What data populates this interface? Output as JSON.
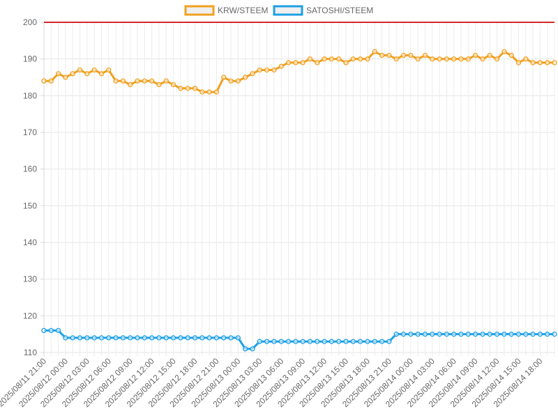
{
  "chart_data": {
    "type": "line",
    "title": "",
    "xlabel": "",
    "ylabel": "",
    "ylim": [
      110,
      200
    ],
    "y_ticks": [
      110,
      120,
      130,
      140,
      150,
      160,
      170,
      180,
      190,
      200
    ],
    "grid": true,
    "legend_position": "top",
    "reference_line": {
      "value": 200,
      "color": "#d62728"
    },
    "x_tick_labels": [
      "2025/08/11 21:00",
      "2025/08/12 00:00",
      "2025/08/12 03:00",
      "2025/08/12 06:00",
      "2025/08/12 09:00",
      "2025/08/12 12:00",
      "2025/08/12 15:00",
      "2025/08/12 18:00",
      "2025/08/12 21:00",
      "2025/08/13 00:00",
      "2025/08/13 03:00",
      "2025/08/13 06:00",
      "2025/08/13 09:00",
      "2025/08/13 12:00",
      "2025/08/13 15:00",
      "2025/08/13 18:00",
      "2025/08/13 21:00",
      "2025/08/14 00:00",
      "2025/08/14 03:00",
      "2025/08/14 06:00",
      "2025/08/14 09:00",
      "2025/08/14 12:00",
      "2025/08/14 15:00",
      "2025/08/14 18:00"
    ],
    "x_start": "2025/08/11 21:00",
    "x_interval": "1 hour",
    "series": [
      {
        "name": "KRW/STEEM",
        "color": "#f0a020",
        "values": [
          184,
          184,
          186,
          185,
          186,
          187,
          186,
          187,
          186,
          187,
          184,
          184,
          183,
          184,
          184,
          184,
          183,
          184,
          183,
          182,
          182,
          182,
          181,
          181,
          181,
          185,
          184,
          184,
          185,
          186,
          187,
          187,
          187,
          188,
          189,
          189,
          189,
          190,
          189,
          190,
          190,
          190,
          189,
          190,
          190,
          190,
          192,
          191,
          191,
          190,
          191,
          191,
          190,
          191,
          190,
          190,
          190,
          190,
          190,
          190,
          191,
          190,
          191,
          190,
          192,
          191,
          189,
          190,
          189,
          189,
          189,
          189
        ]
      },
      {
        "name": "SATOSHI/STEEM",
        "color": "#1ea0e6",
        "values": [
          116,
          116,
          116,
          114,
          114,
          114,
          114,
          114,
          114,
          114,
          114,
          114,
          114,
          114,
          114,
          114,
          114,
          114,
          114,
          114,
          114,
          114,
          114,
          114,
          114,
          114,
          114,
          114,
          111,
          111,
          113,
          113,
          113,
          113,
          113,
          113,
          113,
          113,
          113,
          113,
          113,
          113,
          113,
          113,
          113,
          113,
          113,
          113,
          113,
          115,
          115,
          115,
          115,
          115,
          115,
          115,
          115,
          115,
          115,
          115,
          115,
          115,
          115,
          115,
          115,
          115,
          115,
          115,
          115,
          115,
          115,
          115
        ]
      }
    ]
  }
}
